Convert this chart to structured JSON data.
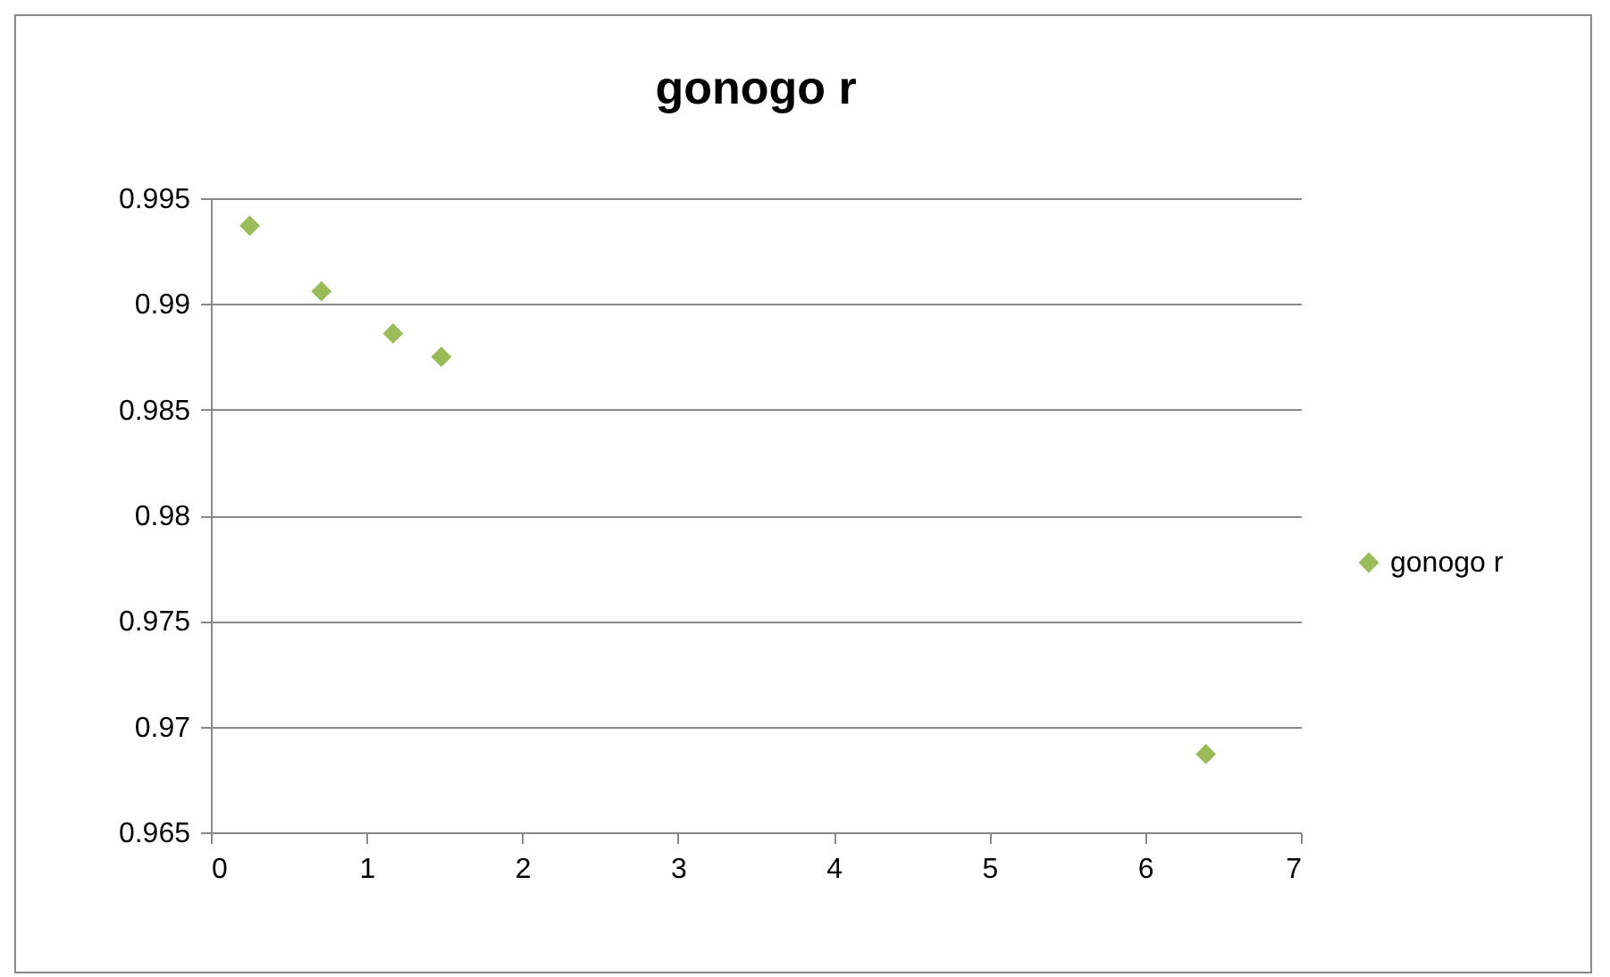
{
  "chart_data": {
    "type": "scatter",
    "title": "gonogo r",
    "x": [
      0.25,
      0.71,
      1.17,
      1.48,
      6.39
    ],
    "series": [
      {
        "name": "gonogo r",
        "color": "#9bbb59",
        "values": [
          0.9937,
          0.9906,
          0.9886,
          0.9875,
          0.9687
        ]
      }
    ],
    "xlim": [
      0,
      7
    ],
    "xticks": [
      0,
      1,
      2,
      3,
      4,
      5,
      6,
      7
    ],
    "ylim": [
      0.965,
      0.995
    ],
    "yticks": [
      0.965,
      0.97,
      0.975,
      0.98,
      0.985,
      0.99,
      0.995
    ],
    "grid": "y",
    "legend": "right",
    "marker": "diamond"
  }
}
